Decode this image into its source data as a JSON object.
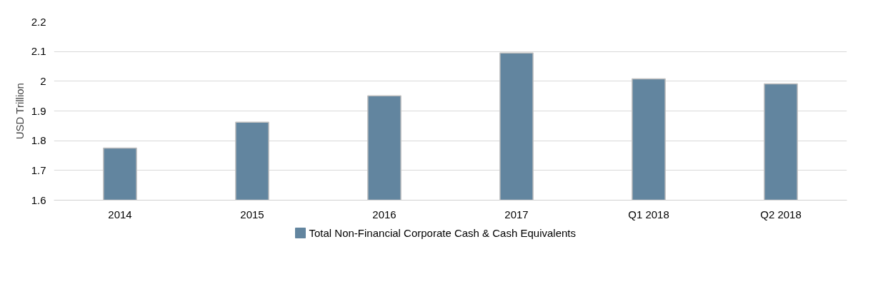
{
  "chart_data": {
    "type": "bar",
    "ylabel": "USD Trillion",
    "categories": [
      "2014",
      "2015",
      "2016",
      "2017",
      "Q1 2018",
      "Q2 2018"
    ],
    "series": [
      {
        "name": "Total Non-Financial Corporate Cash & Cash Equivalents",
        "color": "#62859f",
        "values": [
          1.775,
          1.862,
          1.951,
          2.095,
          2.008,
          1.991
        ]
      }
    ],
    "ylim": [
      1.6,
      2.2
    ],
    "yticks": [
      {
        "value": 1.6,
        "label": "1.6"
      },
      {
        "value": 1.7,
        "label": "1.7"
      },
      {
        "value": 1.8,
        "label": "1.8"
      },
      {
        "value": 1.9,
        "label": "1.9"
      },
      {
        "value": 2.0,
        "label": "2"
      },
      {
        "value": 2.1,
        "label": "2.1"
      },
      {
        "value": 2.2,
        "label": "2.2"
      }
    ],
    "grid": "y",
    "legend": "bottom"
  }
}
